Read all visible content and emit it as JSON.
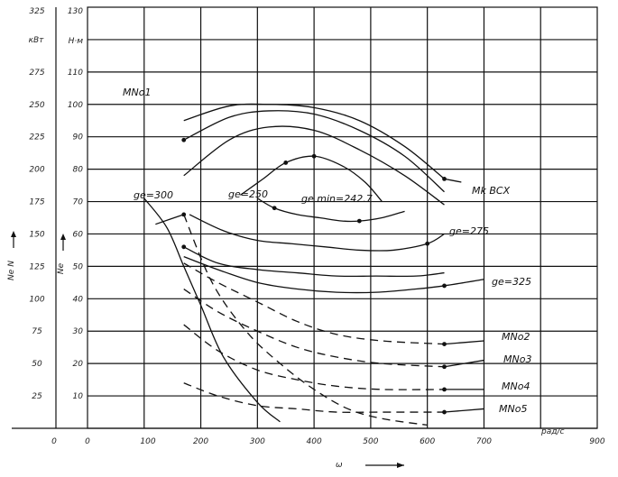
{
  "chart_data": {
    "type": "line",
    "title": "",
    "axes": {
      "x": {
        "ticks": [
          "0",
          "0",
          "100",
          "200",
          "300",
          "400",
          "500",
          "600",
          "700",
          "900"
        ],
        "unit": "рад/с",
        "label": "ω",
        "range": [
          0,
          900
        ]
      },
      "y_me": {
        "ticks": [
          "25",
          "50",
          "75",
          "100",
          "125",
          "150",
          "175",
          "200",
          "225",
          "250",
          "275",
          "325"
        ],
        "unit": "кВт",
        "label": "Ne N",
        "range": [
          0,
          325
        ]
      },
      "y_ne": {
        "ticks": [
          "10",
          "20",
          "30",
          "40",
          "50",
          "60",
          "70",
          "80",
          "90",
          "100",
          "110",
          "130"
        ],
        "unit": "Н·м",
        "label": "Ne",
        "range": [
          0,
          130
        ]
      }
    },
    "grid": true,
    "labels": {
      "mnk1": "MNo1",
      "mk_vsx": "Mk ВСХ",
      "ge300": "ge=300",
      "ge250": "ge=250",
      "gemin": "ge min=242.7",
      "ge275": "ge=275",
      "ge325": "ge=325",
      "mnk2": "MNo2",
      "mnk3": "MNo3",
      "mnk4": "MNo4",
      "mnk5": "MNo5"
    },
    "series": [
      {
        "name": "MNo1",
        "style": "solid",
        "x": [
          120,
          170
        ],
        "y": [
          63,
          66
        ]
      },
      {
        "name": "MNo1",
        "style": "dashed",
        "x": [
          170,
          220,
          280,
          340,
          400,
          460,
          520,
          600
        ],
        "y": [
          66,
          45,
          30,
          20,
          12,
          6,
          3,
          1
        ]
      },
      {
        "name": "Mk ВСХ",
        "style": "solid",
        "x": [
          170,
          250,
          320,
          400,
          480,
          560,
          630
        ],
        "y": [
          95,
          99.5,
          100,
          99,
          95,
          87,
          77
        ]
      },
      {
        "name": "Mk ВСХ",
        "style": "solid",
        "x": [
          630,
          660
        ],
        "y": [
          77,
          76
        ]
      },
      {
        "name": "",
        "style": "solid",
        "x": [
          170,
          250,
          320,
          400,
          480,
          560,
          630
        ],
        "y": [
          89,
          96,
          98,
          97,
          92,
          84,
          73
        ]
      },
      {
        "name": "",
        "style": "solid",
        "x": [
          170,
          250,
          320,
          400,
          480,
          560,
          630
        ],
        "y": [
          78,
          89,
          93,
          92,
          86,
          78,
          69
        ]
      },
      {
        "name": "ge=300",
        "style": "solid",
        "x": [
          100,
          140,
          170,
          200,
          240,
          300,
          340
        ],
        "y": [
          71,
          62,
          50,
          38,
          22,
          8,
          2
        ]
      },
      {
        "name": "ge=250",
        "style": "solid",
        "x": [
          270,
          310,
          350,
          400,
          450,
          490,
          520
        ],
        "y": [
          72,
          77,
          82,
          84,
          81,
          76,
          70
        ]
      },
      {
        "name": "ge min",
        "style": "solid",
        "x": [
          300,
          330,
          370,
          410,
          450,
          480,
          520,
          560
        ],
        "y": [
          71,
          68,
          66,
          65,
          64,
          64,
          65,
          67
        ]
      },
      {
        "name": "ge=275",
        "style": "solid",
        "x": [
          180,
          240,
          300,
          360,
          420,
          480,
          540,
          600,
          630
        ],
        "y": [
          66,
          61,
          58,
          57,
          56,
          55,
          55,
          57,
          60
        ]
      },
      {
        "name": "ge=325",
        "style": "solid",
        "x": [
          170,
          230,
          300,
          370,
          440,
          510,
          580,
          630,
          700
        ],
        "y": [
          53,
          49,
          45,
          43,
          42,
          42,
          43,
          44,
          46
        ]
      },
      {
        "name": "",
        "style": "solid",
        "x": [
          170,
          230,
          300,
          370,
          440,
          510,
          580,
          630
        ],
        "y": [
          56,
          51,
          49,
          48,
          47,
          47,
          47,
          48
        ]
      },
      {
        "name": "MNo2",
        "style": "dashed",
        "x": [
          170,
          230,
          300,
          370,
          440,
          520,
          630
        ],
        "y": [
          51,
          45,
          39,
          33,
          29,
          27,
          26
        ]
      },
      {
        "name": "MNo2",
        "style": "solid",
        "x": [
          630,
          700
        ],
        "y": [
          26,
          27
        ]
      },
      {
        "name": "MNo3",
        "style": "dashed",
        "x": [
          170,
          230,
          300,
          370,
          440,
          520,
          630
        ],
        "y": [
          43,
          36,
          30,
          25,
          22,
          20,
          19
        ]
      },
      {
        "name": "MNo3",
        "style": "solid",
        "x": [
          630,
          700
        ],
        "y": [
          19,
          21
        ]
      },
      {
        "name": "MNo4",
        "style": "dashed",
        "x": [
          170,
          230,
          300,
          370,
          440,
          520,
          630
        ],
        "y": [
          32,
          24,
          18,
          15,
          13,
          12,
          12
        ]
      },
      {
        "name": "MNo4",
        "style": "solid",
        "x": [
          630,
          700
        ],
        "y": [
          12,
          12
        ]
      },
      {
        "name": "MNo5",
        "style": "dashed",
        "x": [
          170,
          230,
          300,
          370,
          440,
          520,
          630
        ],
        "y": [
          14,
          10,
          7,
          6,
          5,
          5,
          5
        ]
      },
      {
        "name": "MNo5",
        "style": "solid",
        "x": [
          630,
          700
        ],
        "y": [
          5,
          6
        ]
      }
    ],
    "points": [
      {
        "x": 170,
        "y": 66
      },
      {
        "x": 170,
        "y": 89
      },
      {
        "x": 630,
        "y": 77
      },
      {
        "x": 350,
        "y": 82
      },
      {
        "x": 400,
        "y": 84
      },
      {
        "x": 330,
        "y": 68
      },
      {
        "x": 480,
        "y": 64
      },
      {
        "x": 600,
        "y": 57
      },
      {
        "x": 630,
        "y": 44
      },
      {
        "x": 630,
        "y": 26
      },
      {
        "x": 630,
        "y": 19
      },
      {
        "x": 630,
        "y": 12
      },
      {
        "x": 630,
        "y": 5
      },
      {
        "x": 170,
        "y": 56
      }
    ]
  }
}
